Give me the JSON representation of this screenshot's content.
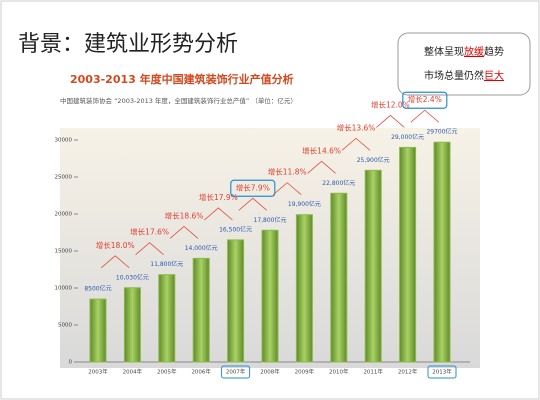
{
  "slide_title": "背景：建筑业形势分析",
  "callout": {
    "line1": [
      "整体呈现",
      "放缓",
      "趋势"
    ],
    "line2": [
      "市场总量仍然",
      "巨大"
    ]
  },
  "chart_data": {
    "type": "bar",
    "title": "2003-2013 年度中国建筑装饰行业产值分析",
    "subtitle": "中国建筑装饰协会 “2003-2013 年度，全国建筑装饰行业总产值” （单位：亿元）",
    "categories": [
      "2003年",
      "2004年",
      "2005年",
      "2006年",
      "2007年",
      "2008年",
      "2009年",
      "2010年",
      "2011年",
      "2012年",
      "2013年"
    ],
    "values": [
      8500,
      10030,
      11800,
      14000,
      16500,
      17800,
      19900,
      22800,
      25900,
      29000,
      29700
    ],
    "value_labels": [
      "8500亿元",
      "10,030亿元",
      "11,800亿元",
      "14,000亿元",
      "16,500亿元",
      "17,800亿元",
      "19,900亿元",
      "22,800亿元",
      "25,900亿元",
      "29,000亿元",
      "29700亿元"
    ],
    "annotations": [
      "增长18.0%",
      "增长17.6%",
      "增长18.6%",
      "增长17.9%",
      "增长7.9%",
      "增长11.8%",
      "增长14.6%",
      "增长13.6%",
      "增长12.0%",
      "增长2.4%"
    ],
    "color": "#8db84a",
    "ylim": [
      0,
      30000
    ],
    "yticks": [
      0,
      5000,
      10000,
      15000,
      20000,
      25000,
      30000
    ]
  }
}
